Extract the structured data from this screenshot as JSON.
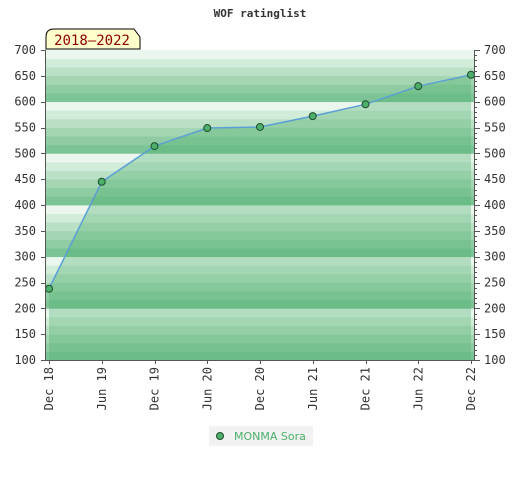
{
  "chart_data": {
    "type": "area",
    "title": "WOF ratinglist",
    "period_label": "2018–2022",
    "xlabel": "",
    "ylabel": "",
    "ylim": [
      100,
      700
    ],
    "y_ticks": [
      "700",
      "650",
      "600",
      "550",
      "500",
      "450",
      "400",
      "350",
      "300",
      "250",
      "200",
      "150",
      "100"
    ],
    "categories": [
      "Dec 18",
      "Jun 19",
      "Dec 19",
      "Jun 20",
      "Dec 20",
      "Jun 21",
      "Dec 21",
      "Jun 22",
      "Dec 22"
    ],
    "series": [
      {
        "name": "MONMA Sora",
        "values": [
          238,
          445,
          514,
          549,
          551,
          572,
          595,
          630,
          652
        ]
      }
    ],
    "grid": true,
    "legend_position": "bottom-center",
    "colors": {
      "line": "#5b9fd6",
      "marker_fill": "#4caf6a",
      "marker_stroke": "#1f4d2b",
      "area_fill": "#4caf6a",
      "band_dark": "#7cc496",
      "band_light": "#eef7f1",
      "legend_text": "#4caf6a",
      "period_bg": "#ffffcc"
    }
  }
}
